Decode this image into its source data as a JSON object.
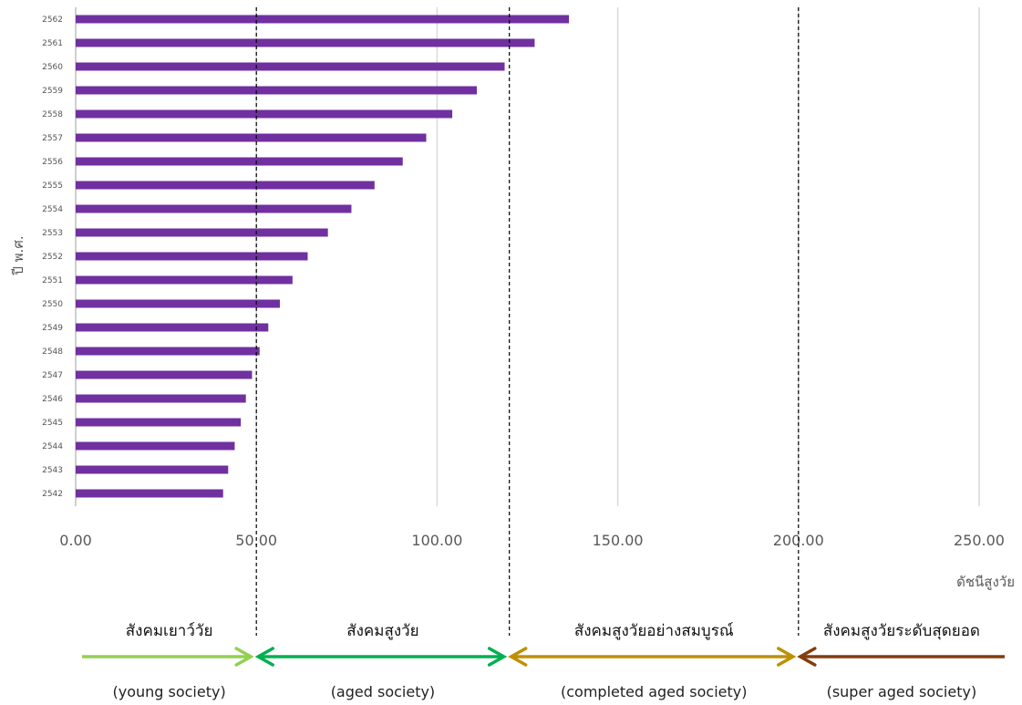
{
  "chart_data": {
    "type": "bar",
    "orientation": "horizontal",
    "categories": [
      "2542",
      "2543",
      "2544",
      "2545",
      "2546",
      "2547",
      "2548",
      "2549",
      "2550",
      "2551",
      "2552",
      "2553",
      "2554",
      "2555",
      "2556",
      "2557",
      "2558",
      "2559",
      "2560",
      "2561",
      "2562"
    ],
    "values": [
      40.8,
      42.2,
      44.0,
      45.7,
      47.1,
      48.8,
      50.9,
      53.3,
      56.5,
      60.0,
      64.2,
      69.8,
      76.3,
      82.7,
      90.5,
      97.0,
      104.2,
      111.0,
      118.7,
      127.0,
      136.5
    ],
    "xlim": [
      0,
      250
    ],
    "x_ticks": [
      "0.00",
      "50.00",
      "100.00",
      "150.00",
      "200.00",
      "250.00"
    ],
    "x_tick_values": [
      0,
      50,
      100,
      150,
      200,
      250
    ],
    "xlabel": "ดัชนีสูงวัย",
    "ylabel": "ปี พ.ศ.",
    "grid": "vertical",
    "bar_color": "#7030A0",
    "thresholds": [
      50,
      120,
      200
    ],
    "zones": [
      {
        "label_th": "สังคมเยาว์วัย",
        "label_en": "(young society)",
        "color": "#92D050"
      },
      {
        "label_th": "สังคมสูงวัย",
        "label_en": "(aged society)",
        "color": "#00B050"
      },
      {
        "label_th": "สังคมสูงวัยอย่างสมบูรณ์",
        "label_en": "(completed aged society)",
        "color": "#BF9000"
      },
      {
        "label_th": "สังคมสูงวัยระดับสุดยอด",
        "label_en": "(super aged society)",
        "color": "#843C0C"
      }
    ]
  }
}
